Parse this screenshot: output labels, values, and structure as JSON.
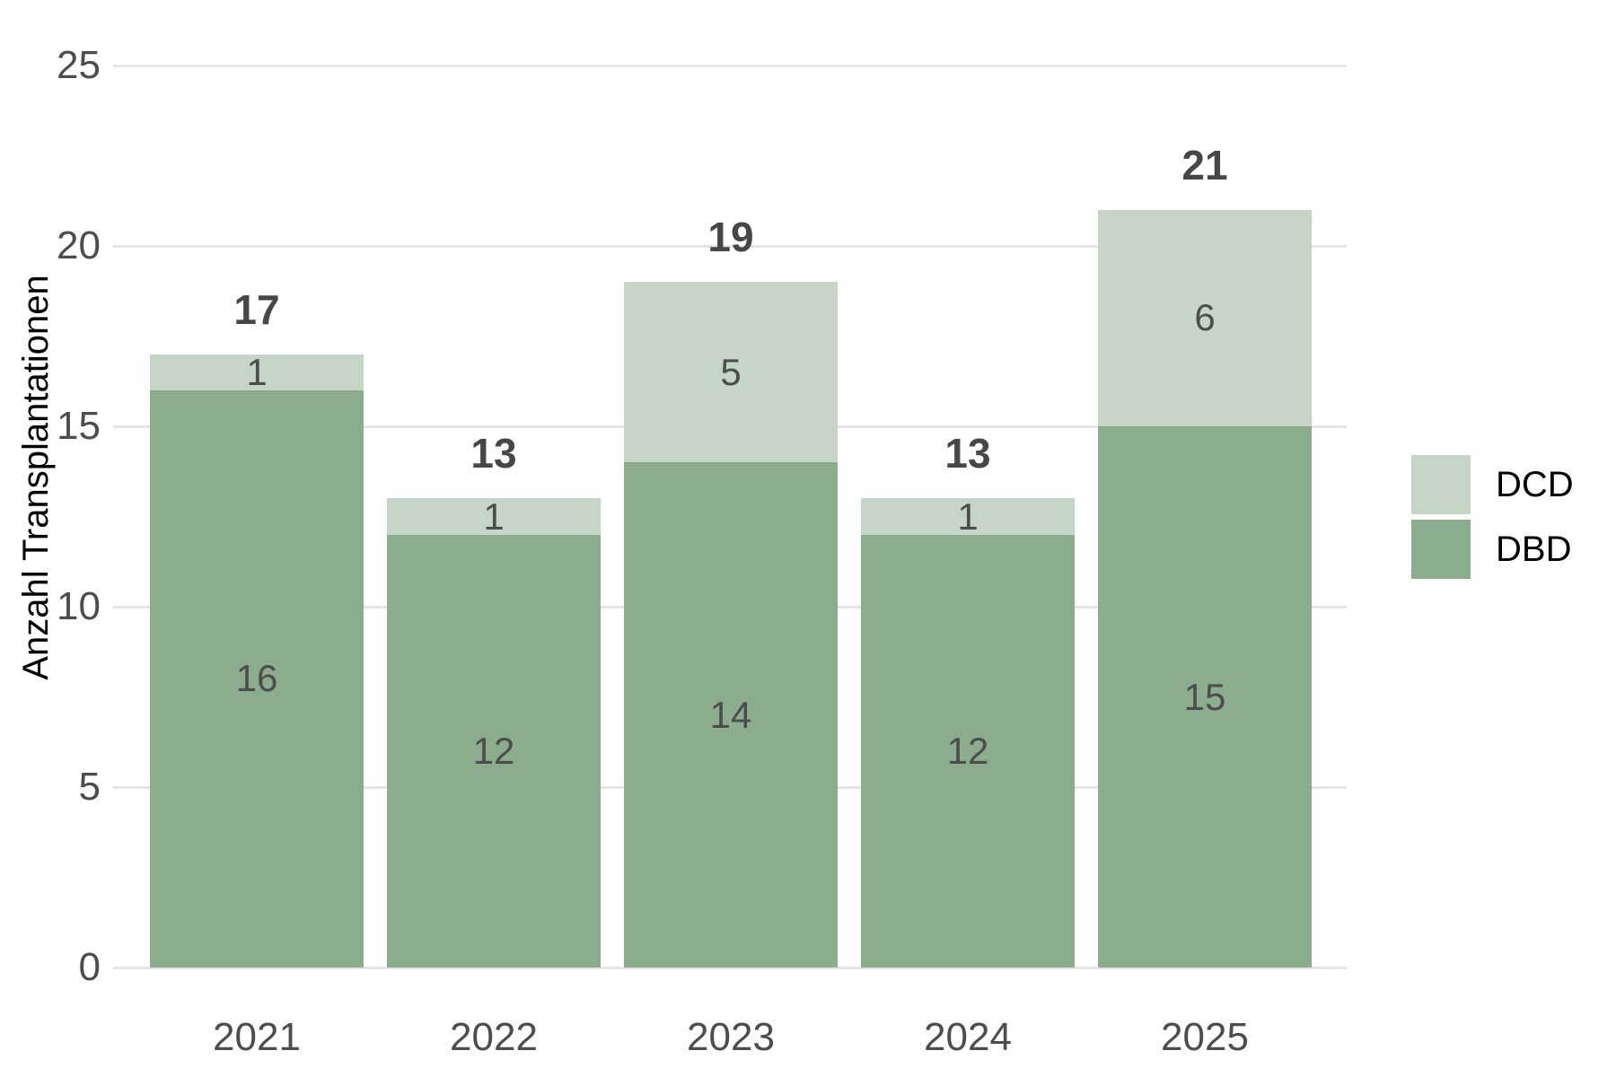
{
  "chart_data": {
    "type": "bar",
    "stacked": true,
    "title": "",
    "xlabel": "",
    "ylabel": "Anzahl Transplantationen",
    "categories": [
      "2021",
      "2022",
      "2023",
      "2024",
      "2025"
    ],
    "series": [
      {
        "name": "DBD",
        "color": "#8bac8d",
        "values": [
          16,
          12,
          14,
          12,
          15
        ]
      },
      {
        "name": "DCD",
        "color": "#c5d6c6",
        "values": [
          1,
          1,
          5,
          1,
          6
        ]
      }
    ],
    "totals": [
      17,
      13,
      19,
      13,
      21
    ],
    "yticks": [
      0,
      5,
      10,
      15,
      20,
      25
    ],
    "ylim": [
      0,
      25
    ],
    "grid": "horizontal",
    "legend_position": "right"
  },
  "legend": {
    "items": [
      {
        "label": "DCD",
        "color": "#c5d6c6"
      },
      {
        "label": "DBD",
        "color": "#8bac8d"
      }
    ]
  },
  "colors": {
    "gridline": "#e5e5e5",
    "tick_text": "#4d4d4d",
    "total_text": "#474747",
    "axis_title_text": "#000000"
  }
}
